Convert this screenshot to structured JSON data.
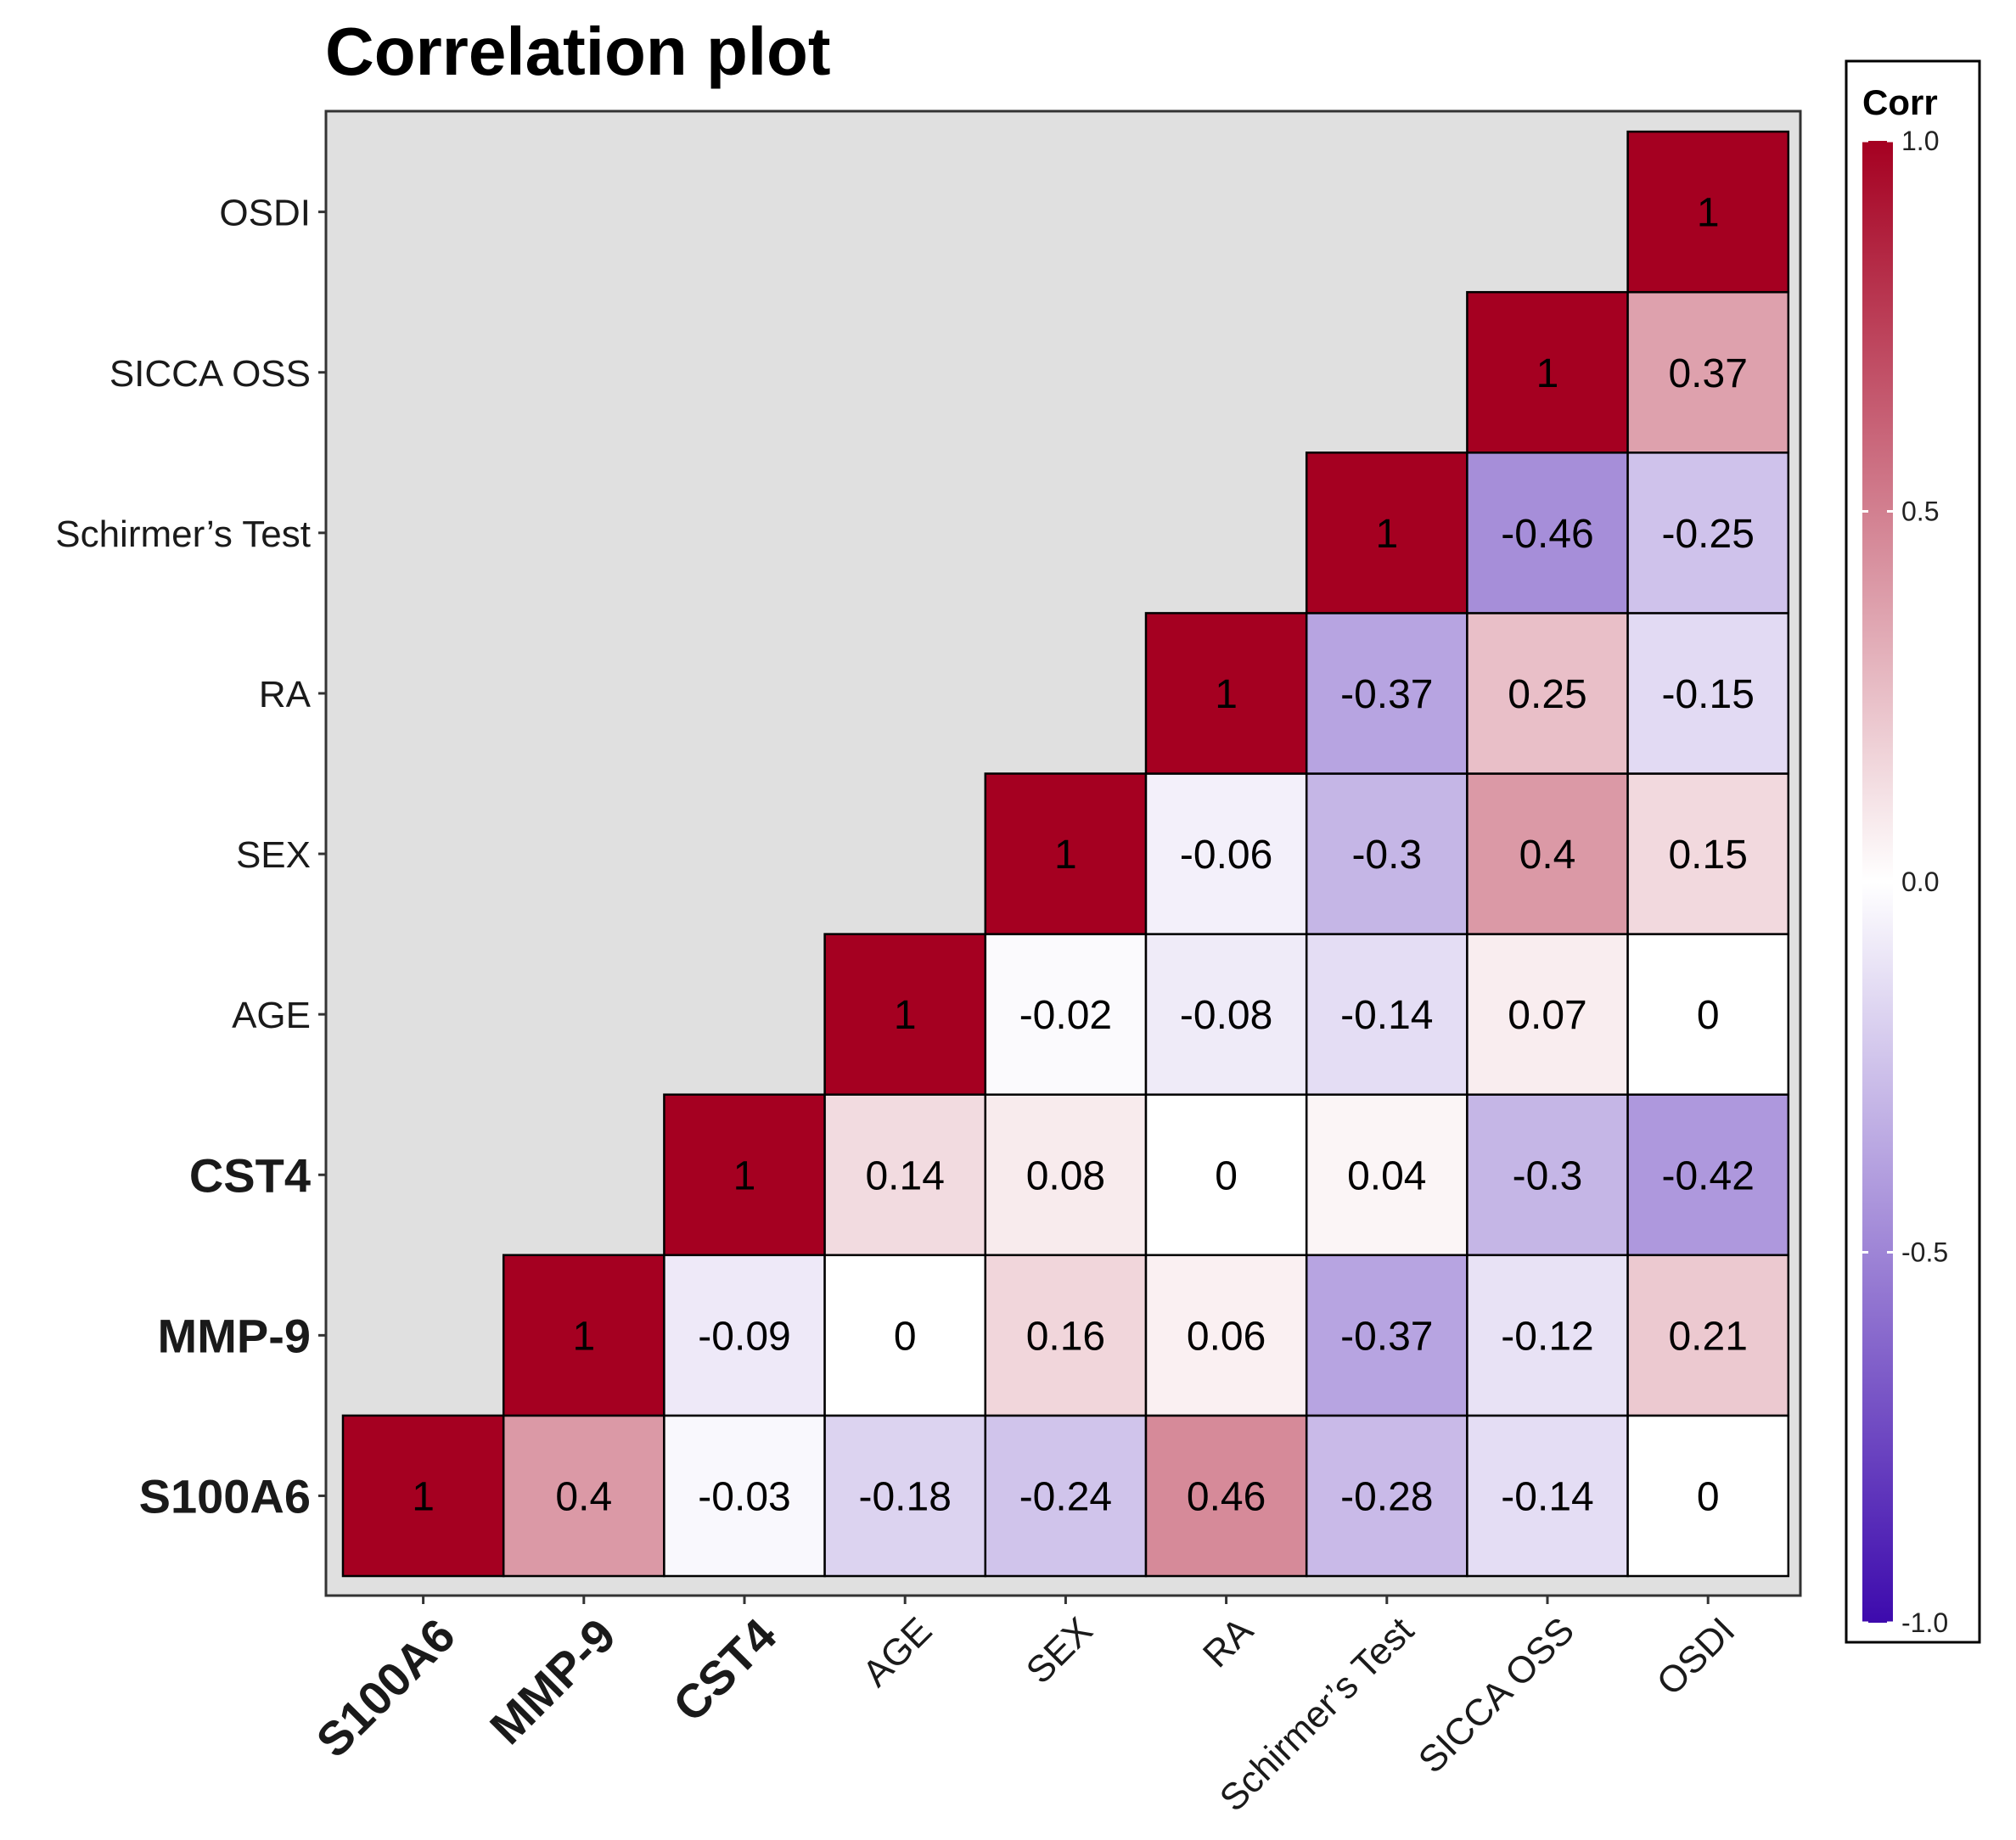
{
  "chart_data": {
    "type": "heatmap",
    "title": "Correlation plot",
    "variables": [
      "S100A6",
      "MMP-9",
      "CST4",
      "AGE",
      "SEX",
      "RA",
      "Schirmer’s Test",
      "SICCA OSS",
      "OSDI"
    ],
    "bold_variables": [
      "S100A6",
      "MMP-9",
      "CST4"
    ],
    "matrix": [
      [
        "1",
        "0.4",
        "-0.03",
        "-0.18",
        "-0.24",
        "0.46",
        "-0.28",
        "-0.14",
        "0"
      ],
      [
        null,
        "1",
        "-0.09",
        "0",
        "0.16",
        "0.06",
        "-0.37",
        "-0.12",
        "0.21"
      ],
      [
        null,
        null,
        "1",
        "0.14",
        "0.08",
        "0",
        "0.04",
        "-0.3",
        "-0.42"
      ],
      [
        null,
        null,
        null,
        "1",
        "-0.02",
        "-0.08",
        "-0.14",
        "0.07",
        "0"
      ],
      [
        null,
        null,
        null,
        null,
        "1",
        "-0.06",
        "-0.3",
        "0.4",
        "0.15"
      ],
      [
        null,
        null,
        null,
        null,
        null,
        "1",
        "-0.37",
        "0.25",
        "-0.15"
      ],
      [
        null,
        null,
        null,
        null,
        null,
        null,
        "1",
        "-0.46",
        "-0.25"
      ],
      [
        null,
        null,
        null,
        null,
        null,
        null,
        null,
        "1",
        "0.37"
      ],
      [
        null,
        null,
        null,
        null,
        null,
        null,
        null,
        null,
        "1"
      ]
    ],
    "legend": {
      "title": "Corr",
      "range": [
        -1,
        1
      ],
      "ticks": [
        "1.0",
        "0.5",
        "0.0",
        "-0.5",
        "-1.0"
      ],
      "colors": {
        "high": "#a50021",
        "mid": "#ffffff",
        "low": "#3d0aad"
      },
      "placement": "right"
    },
    "panel_background": "#e0e0e0"
  }
}
